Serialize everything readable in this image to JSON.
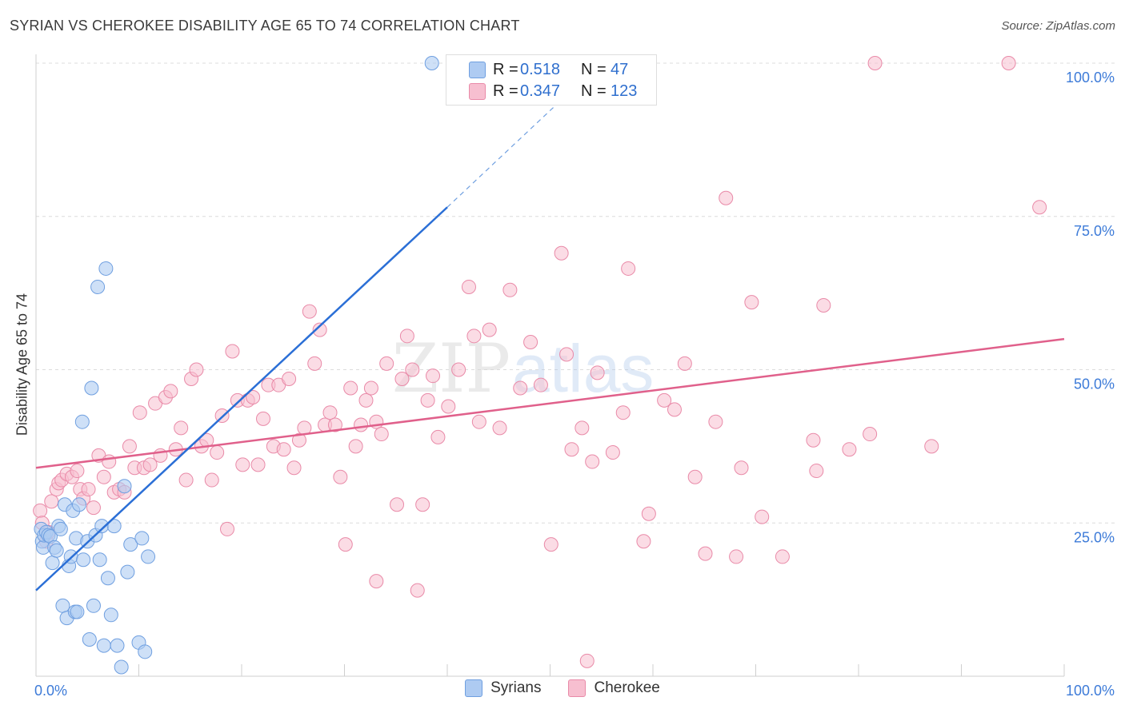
{
  "header": {
    "title": "SYRIAN VS CHEROKEE DISABILITY AGE 65 TO 74 CORRELATION CHART",
    "source": "Source: ZipAtlas.com"
  },
  "watermark": {
    "part1": "ZIP",
    "part2": "atlas"
  },
  "legend": {
    "rows": [
      {
        "r_label": "R =",
        "r_value": "0.518",
        "n_label": "N =",
        "n_value": "47"
      },
      {
        "r_label": "R =",
        "r_value": "0.347",
        "n_label": "N =",
        "n_value": "123"
      }
    ]
  },
  "bottom_legend": {
    "syrians": "Syrians",
    "cherokee": "Cherokee"
  },
  "colors": {
    "syrian_fill": "#aecbf2",
    "syrian_stroke": "#6f9fe0",
    "syrian_line": "#2b6fd6",
    "cherokee_fill": "#f7bfd0",
    "cherokee_stroke": "#e98aa8",
    "cherokee_line": "#e0608b",
    "tick_label": "#3d7bd8"
  },
  "chart_data": {
    "type": "scatter",
    "title": "SYRIAN VS CHEROKEE DISABILITY AGE 65 TO 74 CORRELATION CHART",
    "xlabel": "",
    "ylabel": "Disability Age 65 to 74",
    "xlim": [
      0,
      100
    ],
    "ylim": [
      0,
      100
    ],
    "x_tick_labels": [
      {
        "value": 0,
        "label": "0.0%"
      },
      {
        "value": 100,
        "label": "100.0%"
      }
    ],
    "y_tick_labels": [
      {
        "value": 25,
        "label": "25.0%"
      },
      {
        "value": 50,
        "label": "50.0%"
      },
      {
        "value": 75,
        "label": "75.0%"
      },
      {
        "value": 100,
        "label": "100.0%"
      }
    ],
    "series": [
      {
        "name": "Syrians",
        "R": 0.518,
        "N": 47,
        "trend": {
          "x0": 0,
          "y0": 14,
          "x1": 40,
          "y1": 76.5,
          "dash_x1": 53,
          "dash_y1": 97
        },
        "points": [
          [
            0.5,
            24
          ],
          [
            0.6,
            22
          ],
          [
            0.7,
            21
          ],
          [
            0.8,
            23
          ],
          [
            1,
            23.5
          ],
          [
            1.2,
            23
          ],
          [
            1.4,
            22.8
          ],
          [
            1.6,
            18.5
          ],
          [
            1.8,
            21
          ],
          [
            2,
            20.5
          ],
          [
            2.2,
            24.5
          ],
          [
            2.4,
            24
          ],
          [
            2.6,
            11.5
          ],
          [
            2.8,
            28
          ],
          [
            3,
            9.5
          ],
          [
            3.2,
            18
          ],
          [
            3.4,
            19.5
          ],
          [
            3.6,
            27
          ],
          [
            3.8,
            10.5
          ],
          [
            3.9,
            22.5
          ],
          [
            4,
            10.5
          ],
          [
            4.2,
            28
          ],
          [
            4.5,
            41.5
          ],
          [
            4.6,
            19
          ],
          [
            5,
            22
          ],
          [
            5.2,
            6
          ],
          [
            5.4,
            47
          ],
          [
            5.6,
            11.5
          ],
          [
            5.8,
            23
          ],
          [
            6,
            63.5
          ],
          [
            6.2,
            19
          ],
          [
            6.4,
            24.5
          ],
          [
            6.6,
            5
          ],
          [
            6.8,
            66.5
          ],
          [
            7,
            16
          ],
          [
            7.3,
            10
          ],
          [
            7.6,
            24.5
          ],
          [
            7.9,
            5
          ],
          [
            8.3,
            1.5
          ],
          [
            8.6,
            31
          ],
          [
            8.9,
            17
          ],
          [
            9.2,
            21.5
          ],
          [
            10,
            5.5
          ],
          [
            10.3,
            22.5
          ],
          [
            10.6,
            4
          ],
          [
            10.9,
            19.5
          ],
          [
            38.5,
            100
          ]
        ]
      },
      {
        "name": "Cherokee",
        "R": 0.347,
        "N": 123,
        "trend": {
          "x0": 0,
          "y0": 34,
          "x1": 100,
          "y1": 55
        },
        "points": [
          [
            0.4,
            27
          ],
          [
            0.6,
            25
          ],
          [
            1,
            22
          ],
          [
            1.2,
            23.5
          ],
          [
            1.5,
            28.5
          ],
          [
            2,
            30.5
          ],
          [
            2.2,
            31.5
          ],
          [
            2.5,
            32
          ],
          [
            3,
            33
          ],
          [
            3.5,
            32.5
          ],
          [
            4,
            33.5
          ],
          [
            4.3,
            30.5
          ],
          [
            4.6,
            29
          ],
          [
            5.1,
            30.5
          ],
          [
            5.6,
            27.5
          ],
          [
            6.1,
            36
          ],
          [
            6.6,
            32.5
          ],
          [
            7.1,
            35
          ],
          [
            7.6,
            30
          ],
          [
            8.1,
            30.5
          ],
          [
            8.6,
            30
          ],
          [
            9.1,
            37.5
          ],
          [
            9.6,
            34
          ],
          [
            10.1,
            43
          ],
          [
            10.5,
            34
          ],
          [
            11.1,
            34.5
          ],
          [
            11.6,
            44.5
          ],
          [
            12.1,
            36
          ],
          [
            12.6,
            45.5
          ],
          [
            13.1,
            46.5
          ],
          [
            13.6,
            37
          ],
          [
            14.1,
            40.5
          ],
          [
            14.6,
            32
          ],
          [
            15.1,
            48.5
          ],
          [
            15.6,
            50
          ],
          [
            16.1,
            37.5
          ],
          [
            16.6,
            38.5
          ],
          [
            17.1,
            32
          ],
          [
            17.6,
            36.5
          ],
          [
            18.1,
            42.5
          ],
          [
            18.6,
            24
          ],
          [
            19.1,
            53
          ],
          [
            19.6,
            45
          ],
          [
            20.1,
            34.5
          ],
          [
            20.6,
            45
          ],
          [
            21.1,
            45.5
          ],
          [
            21.6,
            34.5
          ],
          [
            22.1,
            42
          ],
          [
            22.6,
            47.5
          ],
          [
            23.1,
            37.5
          ],
          [
            23.6,
            47.5
          ],
          [
            24.1,
            37
          ],
          [
            24.6,
            48.5
          ],
          [
            25.1,
            34
          ],
          [
            25.6,
            38.5
          ],
          [
            26.1,
            40.5
          ],
          [
            26.6,
            59.5
          ],
          [
            27.1,
            51
          ],
          [
            27.6,
            56.5
          ],
          [
            28.1,
            41
          ],
          [
            28.6,
            43
          ],
          [
            29.1,
            41
          ],
          [
            29.6,
            32.5
          ],
          [
            30.1,
            21.5
          ],
          [
            30.6,
            47
          ],
          [
            31.1,
            37.5
          ],
          [
            31.6,
            41
          ],
          [
            32.1,
            45
          ],
          [
            32.6,
            47
          ],
          [
            33.1,
            41.5
          ],
          [
            33.6,
            39.5
          ],
          [
            34.1,
            51
          ],
          [
            35.1,
            28
          ],
          [
            35.6,
            48.5
          ],
          [
            36.1,
            55.5
          ],
          [
            36.6,
            50
          ],
          [
            37.1,
            14
          ],
          [
            37.6,
            28
          ],
          [
            38.1,
            45
          ],
          [
            38.6,
            49
          ],
          [
            39.1,
            39
          ],
          [
            40.1,
            44
          ],
          [
            41.1,
            50
          ],
          [
            42.1,
            63.5
          ],
          [
            42.6,
            55.5
          ],
          [
            43.1,
            41.5
          ],
          [
            44.1,
            56.5
          ],
          [
            45.1,
            40.5
          ],
          [
            46.1,
            63
          ],
          [
            47.1,
            47
          ],
          [
            48.1,
            54.5
          ],
          [
            49.1,
            47.5
          ],
          [
            50.1,
            21.5
          ],
          [
            51.1,
            69
          ],
          [
            51.6,
            52.5
          ],
          [
            52.1,
            37
          ],
          [
            53.1,
            40.5
          ],
          [
            54.1,
            35
          ],
          [
            54.6,
            49.5
          ],
          [
            56.1,
            36.5
          ],
          [
            57.1,
            43
          ],
          [
            57.6,
            66.5
          ],
          [
            59.1,
            22
          ],
          [
            59.6,
            26.5
          ],
          [
            61.1,
            45
          ],
          [
            62.1,
            43.5
          ],
          [
            63.1,
            51
          ],
          [
            64.1,
            32.5
          ],
          [
            65.1,
            20
          ],
          [
            66.1,
            41.5
          ],
          [
            67.1,
            78
          ],
          [
            68.1,
            19.5
          ],
          [
            68.6,
            34
          ],
          [
            69.6,
            61
          ],
          [
            70.6,
            26
          ],
          [
            72.6,
            19.5
          ],
          [
            75.6,
            38.5
          ],
          [
            75.9,
            33.5
          ],
          [
            76.6,
            60.5
          ],
          [
            79.1,
            37
          ],
          [
            81.1,
            39.5
          ],
          [
            81.6,
            100
          ],
          [
            87.1,
            37.5
          ],
          [
            94.6,
            100
          ],
          [
            97.6,
            76.5
          ],
          [
            53.6,
            2.5
          ],
          [
            33.1,
            15.5
          ]
        ]
      }
    ]
  }
}
